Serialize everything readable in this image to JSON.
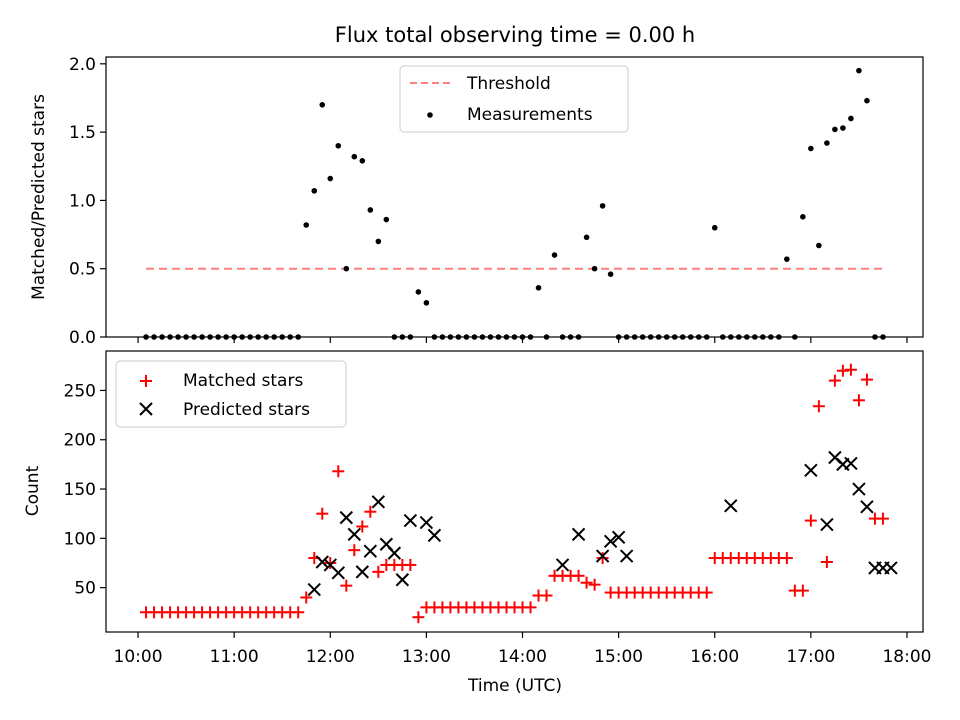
{
  "figure": {
    "title": "Flux total observing time = 0.00 h"
  },
  "chart_data": [
    {
      "type": "scatter",
      "title": "Flux total observing time = 0.00 h",
      "xlabel": "",
      "ylabel": "Matched/Predicted stars",
      "ylim": [
        0,
        2.05
      ],
      "yticks": [
        0.0,
        0.5,
        1.0,
        1.5,
        2.0
      ],
      "ytick_labels": [
        "0.0",
        "0.5",
        "1.0",
        "1.5",
        "2.0"
      ],
      "xlim": [
        "09:40",
        "18:10"
      ],
      "grid": false,
      "legend": "upper center",
      "series": [
        {
          "name": "Threshold",
          "kind": "line",
          "style": "dashed",
          "color": "#ff7f7f",
          "x": [
            "10:05",
            "17:45"
          ],
          "y": [
            0.5,
            0.5
          ]
        },
        {
          "name": "Measurements",
          "kind": "points",
          "color": "#000000",
          "x": [
            "10:05",
            "10:10",
            "10:15",
            "10:20",
            "10:25",
            "10:30",
            "10:35",
            "10:40",
            "10:45",
            "10:50",
            "10:55",
            "11:00",
            "11:05",
            "11:10",
            "11:15",
            "11:20",
            "11:25",
            "11:30",
            "11:35",
            "11:40",
            "11:45",
            "11:50",
            "11:55",
            "12:00",
            "12:05",
            "12:10",
            "12:15",
            "12:20",
            "12:25",
            "12:30",
            "12:35",
            "12:40",
            "12:45",
            "12:50",
            "12:55",
            "13:00",
            "13:05",
            "13:10",
            "13:15",
            "13:20",
            "13:25",
            "13:30",
            "13:35",
            "13:40",
            "13:45",
            "13:50",
            "13:55",
            "14:00",
            "14:05",
            "14:10",
            "14:15",
            "14:20",
            "14:25",
            "14:30",
            "14:35",
            "14:40",
            "14:45",
            "14:50",
            "14:55",
            "15:00",
            "15:05",
            "15:10",
            "15:15",
            "15:20",
            "15:25",
            "15:30",
            "15:35",
            "15:40",
            "15:45",
            "15:50",
            "15:55",
            "16:00",
            "16:05",
            "16:10",
            "16:15",
            "16:20",
            "16:25",
            "16:30",
            "16:35",
            "16:40",
            "16:45",
            "16:50",
            "16:55",
            "17:00",
            "17:05",
            "17:10",
            "17:15",
            "17:20",
            "17:25",
            "17:30",
            "17:35",
            "17:40",
            "17:45"
          ],
          "y": [
            0,
            0,
            0,
            0,
            0,
            0,
            0,
            0,
            0,
            0,
            0,
            0,
            0,
            0,
            0,
            0,
            0,
            0,
            0,
            0,
            0.82,
            1.07,
            1.7,
            1.16,
            1.4,
            0.5,
            1.32,
            1.29,
            0.93,
            0.7,
            0.86,
            0,
            0,
            0,
            0.33,
            0.25,
            0,
            0,
            0,
            0,
            0,
            0,
            0,
            0,
            0,
            0,
            0,
            0,
            0,
            0.36,
            0,
            0.6,
            0,
            0,
            0,
            0.73,
            0.5,
            0.96,
            0.46,
            0,
            0,
            0,
            0,
            0,
            0,
            0,
            0,
            0,
            0,
            0,
            0,
            0.8,
            0,
            0,
            0,
            0,
            0,
            0,
            0,
            0,
            0.57,
            0,
            0.88,
            1.38,
            0.67,
            1.42,
            1.52,
            1.53,
            1.6,
            1.95,
            1.73,
            0,
            0
          ]
        }
      ]
    },
    {
      "type": "scatter",
      "title": "",
      "xlabel": "Time (UTC)",
      "ylabel": "Count",
      "ylim": [
        5,
        290
      ],
      "yticks": [
        50,
        100,
        150,
        200,
        250
      ],
      "ytick_labels": [
        "50",
        "100",
        "150",
        "200",
        "250"
      ],
      "xlim": [
        "09:40",
        "18:10"
      ],
      "xticks": [
        "10:00",
        "11:00",
        "12:00",
        "13:00",
        "14:00",
        "15:00",
        "16:00",
        "17:00",
        "18:00"
      ],
      "grid": false,
      "legend": "upper left",
      "series": [
        {
          "name": "Matched stars",
          "marker": "+",
          "color": "#ff0000",
          "x": [
            "10:05",
            "10:10",
            "10:15",
            "10:20",
            "10:25",
            "10:30",
            "10:35",
            "10:40",
            "10:45",
            "10:50",
            "10:55",
            "11:00",
            "11:05",
            "11:10",
            "11:15",
            "11:20",
            "11:25",
            "11:30",
            "11:35",
            "11:40",
            "11:45",
            "11:50",
            "11:55",
            "12:00",
            "12:05",
            "12:10",
            "12:15",
            "12:20",
            "12:25",
            "12:30",
            "12:35",
            "12:40",
            "12:45",
            "12:50",
            "12:55",
            "13:00",
            "13:05",
            "13:10",
            "13:15",
            "13:20",
            "13:25",
            "13:30",
            "13:35",
            "13:40",
            "13:45",
            "13:50",
            "13:55",
            "14:00",
            "14:05",
            "14:10",
            "14:15",
            "14:20",
            "14:25",
            "14:30",
            "14:35",
            "14:40",
            "14:45",
            "14:50",
            "14:55",
            "15:00",
            "15:05",
            "15:10",
            "15:15",
            "15:20",
            "15:25",
            "15:30",
            "15:35",
            "15:40",
            "15:45",
            "15:50",
            "15:55",
            "16:00",
            "16:05",
            "16:10",
            "16:15",
            "16:20",
            "16:25",
            "16:30",
            "16:35",
            "16:40",
            "16:45",
            "16:50",
            "16:55",
            "17:00",
            "17:05",
            "17:10",
            "17:15",
            "17:20",
            "17:25",
            "17:30",
            "17:35",
            "17:40",
            "17:45"
          ],
          "y": [
            25,
            25,
            25,
            25,
            25,
            25,
            25,
            25,
            25,
            25,
            25,
            25,
            25,
            25,
            25,
            25,
            25,
            25,
            25,
            25,
            40,
            80,
            125,
            75,
            168,
            52,
            88,
            112,
            127,
            66,
            73,
            73,
            73,
            73,
            20,
            30,
            30,
            30,
            30,
            30,
            30,
            30,
            30,
            30,
            30,
            30,
            30,
            30,
            30,
            42,
            42,
            62,
            62,
            62,
            62,
            55,
            53,
            80,
            45,
            45,
            45,
            45,
            45,
            45,
            45,
            45,
            45,
            45,
            45,
            45,
            45,
            80,
            80,
            80,
            80,
            80,
            80,
            80,
            80,
            80,
            80,
            47,
            47,
            118,
            234,
            76,
            260,
            270,
            271,
            240,
            261,
            120,
            120
          ]
        },
        {
          "name": "Predicted stars",
          "marker": "x",
          "color": "#000000",
          "x": [
            "11:50",
            "11:55",
            "12:00",
            "12:05",
            "12:10",
            "12:15",
            "12:20",
            "12:25",
            "12:30",
            "12:35",
            "12:40",
            "12:45",
            "12:50",
            "13:00",
            "13:05",
            "14:25",
            "14:35",
            "14:50",
            "14:55",
            "15:00",
            "15:05",
            "16:10",
            "17:00",
            "17:10",
            "17:15",
            "17:20",
            "17:25",
            "17:30",
            "17:35",
            "17:40",
            "17:45",
            "17:50"
          ],
          "y": [
            48,
            76,
            73,
            65,
            121,
            104,
            66,
            87,
            137,
            94,
            85,
            58,
            118,
            116,
            103,
            73,
            104,
            82,
            97,
            101,
            82,
            133,
            169,
            114,
            182,
            175,
            176,
            150,
            132,
            70,
            70,
            70
          ]
        }
      ]
    }
  ]
}
